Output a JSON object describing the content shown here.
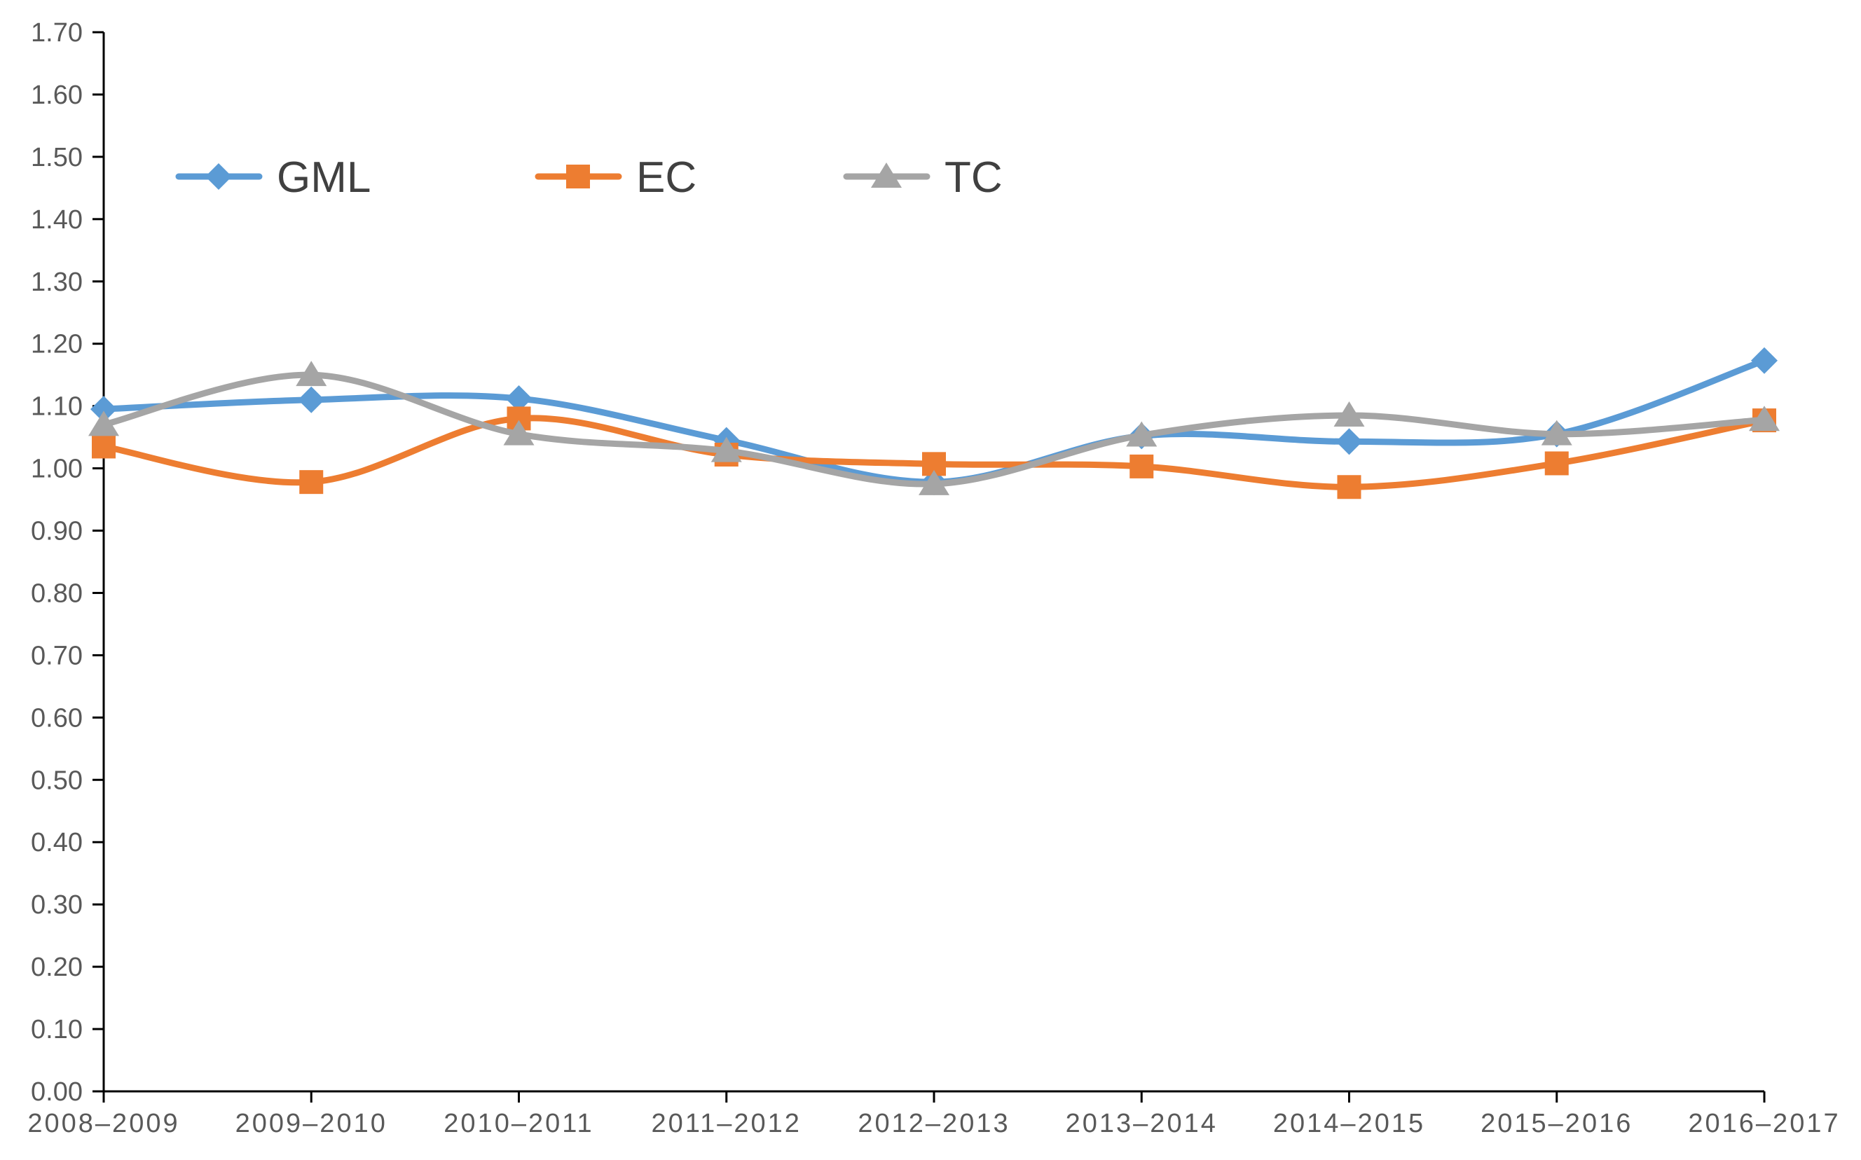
{
  "chart_data": {
    "type": "line",
    "title": "",
    "xlabel": "",
    "ylabel": "",
    "categories": [
      "2008–2009",
      "2009–2010",
      "2010–2011",
      "2011–2012",
      "2012–2013",
      "2013–2014",
      "2014–2015",
      "2015–2016",
      "2016–2017"
    ],
    "ylim": [
      0,
      1.7
    ],
    "ytick_step": 0.1,
    "ytick_labels": [
      "0.00",
      "0.10",
      "0.20",
      "0.30",
      "0.40",
      "0.50",
      "0.60",
      "0.70",
      "0.80",
      "0.90",
      "1.00",
      "1.10",
      "1.20",
      "1.30",
      "1.40",
      "1.50",
      "1.60",
      "1.70"
    ],
    "grid": false,
    "legend_position": "top-left",
    "series": [
      {
        "name": "GML",
        "color": "#5B9BD5",
        "marker": "diamond",
        "values": [
          1.095,
          1.11,
          1.112,
          1.045,
          0.978,
          1.052,
          1.043,
          1.055,
          1.173
        ]
      },
      {
        "name": "EC",
        "color": "#ED7D31",
        "marker": "square",
        "values": [
          1.035,
          0.978,
          1.08,
          1.022,
          1.007,
          1.003,
          0.97,
          1.008,
          1.077
        ]
      },
      {
        "name": "TC",
        "color": "#A5A5A5",
        "marker": "triangle",
        "values": [
          1.07,
          1.15,
          1.055,
          1.028,
          0.975,
          1.053,
          1.085,
          1.055,
          1.078
        ]
      }
    ]
  }
}
